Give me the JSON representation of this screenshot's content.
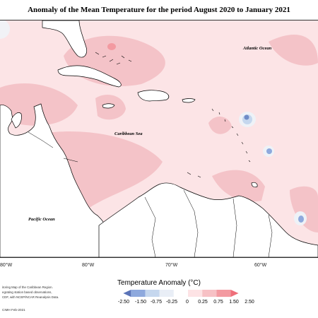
{
  "title": "Anomaly of the Mean Temperature for the period August 2020 to January 2021",
  "ocean_labels": {
    "atlantic": "Atlantic Ocean",
    "caribbean": "Caribbean Sea",
    "pacific": "Pacific Ocean"
  },
  "longitude_ticks": [
    "80°W",
    "80°W",
    "70°W",
    "60°W"
  ],
  "legend": {
    "title": "Temperature Anomaly (°C)",
    "colors": [
      "#5b74b8",
      "#8ea9dd",
      "#c5d7ee",
      "#e9eef6",
      "#ffffff",
      "#fde3e5",
      "#f7c1c5",
      "#f39aa1",
      "#ef6f7a"
    ],
    "labels": [
      "-2.50",
      "-1.50",
      "-0.75",
      "-0.25",
      "0",
      "0.25",
      "0.75",
      "1.50",
      "2.50"
    ]
  },
  "footnote": [
    "itoring Map of the Caribbean Region.",
    "egrating station based observations,",
    "CDF, with NCEP/NCAR Reanalysis Data."
  ],
  "credit": "CIMH Feb-2021",
  "colors": {
    "land": "#ffffff",
    "background_anomaly": "#fce4e6",
    "moderate_anomaly": "#f5c6cb",
    "coast": "#000000"
  }
}
